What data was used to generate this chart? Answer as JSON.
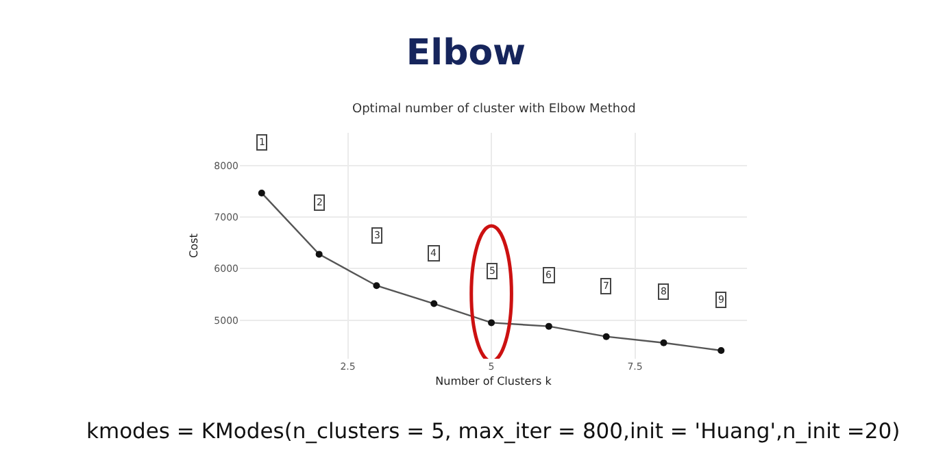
{
  "chart_data": {
    "type": "line",
    "title": "Elbow",
    "subtitle": "Optimal number of cluster with Elbow Method",
    "xlabel": "Number of Clusters k",
    "ylabel": "Cost",
    "x": [
      1,
      2,
      3,
      4,
      5,
      6,
      7,
      8,
      9
    ],
    "series": [
      {
        "color": "#555555",
        "values": [
          7470,
          6280,
          5670,
          5320,
          4950,
          4880,
          4680,
          4560,
          4410
        ]
      }
    ],
    "xlim": [
      0.62,
      9.45
    ],
    "xticks": [
      2.5,
      5,
      7.5
    ],
    "ylim": [
      4250,
      8640
    ],
    "yticks": [
      5000,
      6000,
      7000,
      8000
    ],
    "grid": true,
    "marker": "circle",
    "line_style": "solid",
    "annotations": [
      {
        "text": "1",
        "x": 1,
        "y": 8460
      },
      {
        "text": "2",
        "x": 2,
        "y": 7280
      },
      {
        "text": "3",
        "x": 3,
        "y": 6650
      },
      {
        "text": "4",
        "x": 4,
        "y": 6310
      },
      {
        "text": "5",
        "x": 5,
        "y": 5950
      },
      {
        "text": "6",
        "x": 6,
        "y": 5880
      },
      {
        "text": "7",
        "x": 7,
        "y": 5670
      },
      {
        "text": "8",
        "x": 8,
        "y": 5560
      },
      {
        "text": "9",
        "x": 9,
        "y": 5400
      },
      "kmodes = KModes(n_clusters = 5, max_iter = 800,init = 'Huang',n_init =20)"
    ]
  }
}
